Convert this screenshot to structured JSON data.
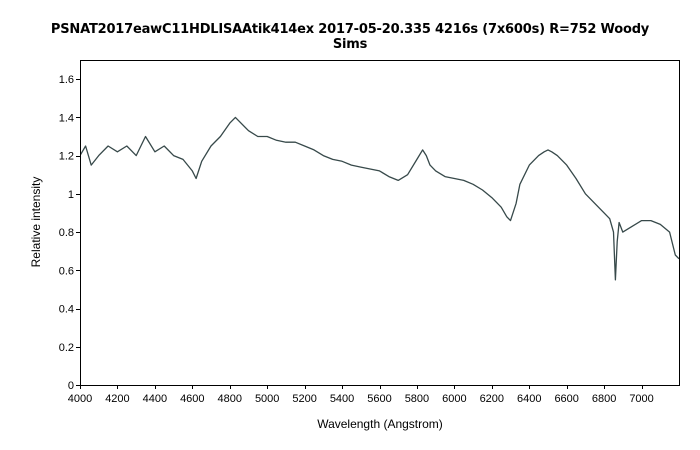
{
  "chart_data": {
    "type": "line",
    "title_line1": "PSNAT2017eawC11HDLISAAtik414ex 2017-05-20.335 4216s (7x600s) R=752 Woody",
    "title_line2": "Sims",
    "xlabel": "Wavelength (Angstrom)",
    "ylabel": "Relative intensity",
    "xlim": [
      4000,
      7200
    ],
    "ylim": [
      0,
      1.7
    ],
    "x_ticks": [
      4000,
      4200,
      4400,
      4600,
      4800,
      5000,
      5200,
      5400,
      5600,
      5800,
      6000,
      6200,
      6400,
      6600,
      6800,
      7000
    ],
    "x_tick_labels": [
      "4000",
      "4200",
      "4400",
      "4600",
      "4800",
      "5000",
      "5200",
      "5400",
      "5600",
      "5800",
      "6000",
      "6200",
      "6400",
      "6600",
      "6800",
      "7000"
    ],
    "y_ticks": [
      0,
      0.2,
      0.4,
      0.6,
      0.8,
      1.0,
      1.2,
      1.4,
      1.6
    ],
    "y_tick_labels": [
      "0",
      "0.2",
      "0.4",
      "0.6",
      "0.8",
      "1",
      "1.2",
      "1.4",
      "1.6"
    ],
    "grid": false,
    "line_color": "#37494a",
    "series": [
      {
        "x": [
          4000,
          4030,
          4060,
          4100,
          4150,
          4200,
          4250,
          4300,
          4350,
          4400,
          4450,
          4500,
          4550,
          4600,
          4620,
          4650,
          4700,
          4750,
          4800,
          4830,
          4850,
          4900,
          4950,
          5000,
          5050,
          5100,
          5150,
          5200,
          5250,
          5300,
          5350,
          5400,
          5450,
          5500,
          5550,
          5600,
          5650,
          5700,
          5750,
          5800,
          5830,
          5850,
          5870,
          5900,
          5950,
          6000,
          6050,
          6100,
          6150,
          6200,
          6250,
          6280,
          6300,
          6330,
          6350,
          6400,
          6450,
          6480,
          6500,
          6520,
          6550,
          6600,
          6650,
          6700,
          6750,
          6800,
          6830,
          6850,
          6860,
          6870,
          6880,
          6900,
          6950,
          7000,
          7050,
          7100,
          7150,
          7180,
          7200
        ],
        "y": [
          1.2,
          1.25,
          1.15,
          1.2,
          1.25,
          1.22,
          1.25,
          1.2,
          1.3,
          1.22,
          1.25,
          1.2,
          1.18,
          1.12,
          1.08,
          1.17,
          1.25,
          1.3,
          1.37,
          1.4,
          1.38,
          1.33,
          1.3,
          1.3,
          1.28,
          1.27,
          1.27,
          1.25,
          1.23,
          1.2,
          1.18,
          1.17,
          1.15,
          1.14,
          1.13,
          1.12,
          1.09,
          1.07,
          1.1,
          1.18,
          1.23,
          1.2,
          1.15,
          1.12,
          1.09,
          1.08,
          1.07,
          1.05,
          1.02,
          0.98,
          0.93,
          0.88,
          0.86,
          0.95,
          1.05,
          1.15,
          1.2,
          1.22,
          1.23,
          1.22,
          1.2,
          1.15,
          1.08,
          1.0,
          0.95,
          0.9,
          0.87,
          0.8,
          0.55,
          0.75,
          0.85,
          0.8,
          0.83,
          0.86,
          0.86,
          0.84,
          0.8,
          0.68,
          0.66
        ]
      }
    ]
  }
}
